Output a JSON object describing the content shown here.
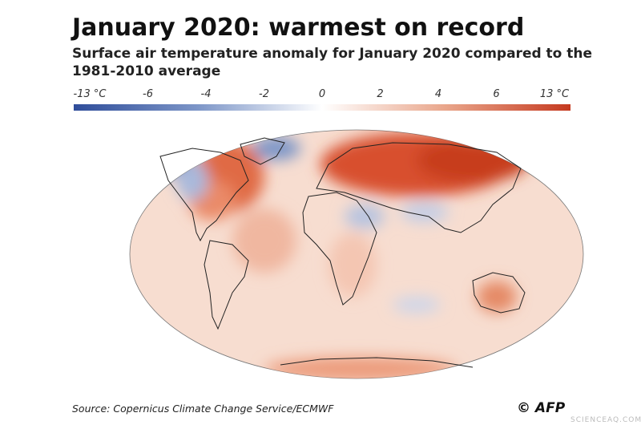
{
  "header": {
    "title": "January 2020: warmest on record",
    "subtitle": [
      "Surface air temperature anomaly for January 2020 compared to the",
      "1981-2010 average"
    ]
  },
  "legend": {
    "labels": [
      "-13 °C",
      "-6",
      "-4",
      "-2",
      "0",
      "2",
      "4",
      "6",
      "13 °C"
    ]
  },
  "footer": {
    "source": "Source: Copernicus Climate Change Service/ECMWF",
    "credit": "© AFP",
    "watermark": "SCIENCEAQ.COM"
  }
}
